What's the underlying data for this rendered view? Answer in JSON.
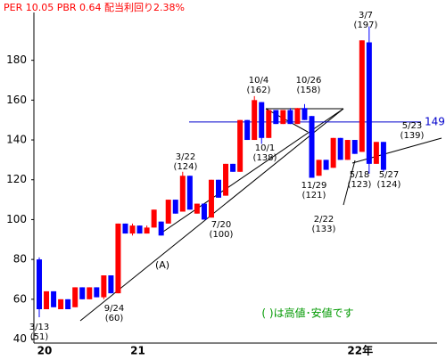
{
  "header": "PER 10.05 PBR 0.64 配当利回り2.38%",
  "chart_data": {
    "type": "candlestick",
    "categories": [
      "20",
      null,
      null,
      null,
      null,
      null,
      null,
      null,
      null,
      null,
      null,
      null,
      null,
      "21",
      null,
      null,
      null,
      null,
      null,
      null,
      null,
      null,
      null,
      null,
      null,
      null,
      null,
      null,
      null,
      null,
      null,
      null,
      null,
      null,
      null,
      null,
      null,
      null,
      null,
      null,
      null,
      null,
      null,
      null,
      "22年",
      null,
      null,
      null,
      null
    ],
    "open": [
      80,
      55,
      64,
      55,
      60,
      56,
      66,
      60,
      66,
      61,
      72,
      63,
      98,
      93,
      97,
      93,
      96,
      99,
      98,
      110,
      104,
      122,
      103,
      108,
      101,
      120,
      112,
      128,
      124,
      150,
      140,
      159,
      141,
      155,
      148,
      155,
      148,
      156,
      152,
      122,
      130,
      126,
      141,
      130,
      140,
      134,
      189,
      128,
      139
    ],
    "high": [
      81,
      64,
      64,
      60,
      60,
      66,
      66,
      66,
      66,
      72,
      72,
      98,
      98,
      98,
      97,
      97,
      105,
      99,
      110,
      110,
      124,
      122,
      108,
      108,
      120,
      120,
      128,
      128,
      150,
      150,
      162,
      159,
      155,
      155,
      155,
      156,
      156,
      158,
      152,
      130,
      130,
      141,
      141,
      140,
      140,
      190,
      197,
      139,
      139
    ],
    "low": [
      51,
      55,
      56,
      55,
      55,
      56,
      60,
      60,
      61,
      60,
      63,
      63,
      93,
      92,
      93,
      93,
      96,
      92,
      98,
      103,
      104,
      105,
      103,
      100,
      101,
      111,
      112,
      124,
      124,
      140,
      140,
      138,
      141,
      148,
      148,
      148,
      148,
      150,
      121,
      122,
      125,
      126,
      130,
      130,
      133,
      134,
      123,
      128,
      124
    ],
    "close": [
      55,
      64,
      56,
      60,
      55,
      66,
      60,
      66,
      61,
      72,
      63,
      98,
      93,
      97,
      93,
      96,
      105,
      92,
      110,
      103,
      122,
      105,
      108,
      100,
      120,
      111,
      128,
      124,
      150,
      140,
      160,
      141,
      155,
      148,
      155,
      148,
      156,
      150,
      121,
      130,
      125,
      141,
      130,
      140,
      133,
      190,
      128,
      139,
      125
    ],
    "up_color": "#ff0000",
    "down_color": "#0000ff",
    "ylim": [
      38,
      204
    ],
    "yticks": [
      40,
      60,
      80,
      100,
      120,
      140,
      160,
      180
    ],
    "hline": {
      "value": 149,
      "label": "149",
      "color": "#0000cc"
    },
    "annotations": [
      {
        "date": "3/13",
        "price": "(51)"
      },
      {
        "date": "9/24",
        "price": "(60)"
      },
      {
        "date": "3/22",
        "price": "(124)"
      },
      {
        "date": "7/20",
        "price": "(100)"
      },
      {
        "date": "10/4",
        "price": "(162)"
      },
      {
        "date": "10/1",
        "price": "(138)"
      },
      {
        "date": "10/26",
        "price": "(158)"
      },
      {
        "date": "11/29",
        "price": "(121)"
      },
      {
        "date": "2/22",
        "price": "(133)"
      },
      {
        "date": "3/7",
        "price": "(197)"
      },
      {
        "date": "5/23",
        "price": "(139)"
      },
      {
        "date": "5/18",
        "price": "(123)"
      },
      {
        "date": "5/27",
        "price": "(124)"
      }
    ],
    "line_label": "(A)",
    "note": "( )は高値･安値です"
  }
}
